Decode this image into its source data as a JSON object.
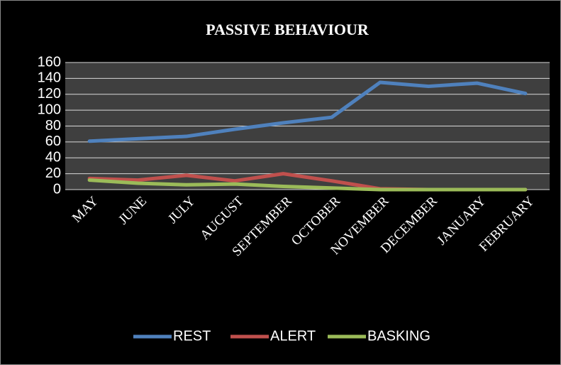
{
  "chart_data": {
    "type": "line",
    "title": "PASSIVE BEHAVIOUR",
    "categories": [
      "MAY",
      "JUNE",
      "JULY",
      "AUGUST",
      "SEPTEMBER",
      "OCTOBER",
      "NOVEMBER",
      "DECEMBER",
      "JANUARY",
      "FEBRUARY"
    ],
    "series": [
      {
        "name": "REST",
        "color": "#4f81bd",
        "values": [
          61,
          64,
          67,
          76,
          84,
          91,
          135,
          130,
          134,
          121
        ]
      },
      {
        "name": "ALERT",
        "color": "#c0504d",
        "values": [
          14,
          12,
          18,
          11,
          20,
          11,
          1,
          0,
          0,
          0
        ]
      },
      {
        "name": "BASKING",
        "color": "#9bbb59",
        "values": [
          12,
          8,
          6,
          7,
          4,
          2,
          0,
          0,
          0,
          0
        ]
      }
    ],
    "ylim": [
      0,
      160
    ],
    "yticks": [
      0,
      20,
      40,
      60,
      80,
      100,
      120,
      140,
      160
    ],
    "grid": true,
    "legend": "bottom"
  }
}
